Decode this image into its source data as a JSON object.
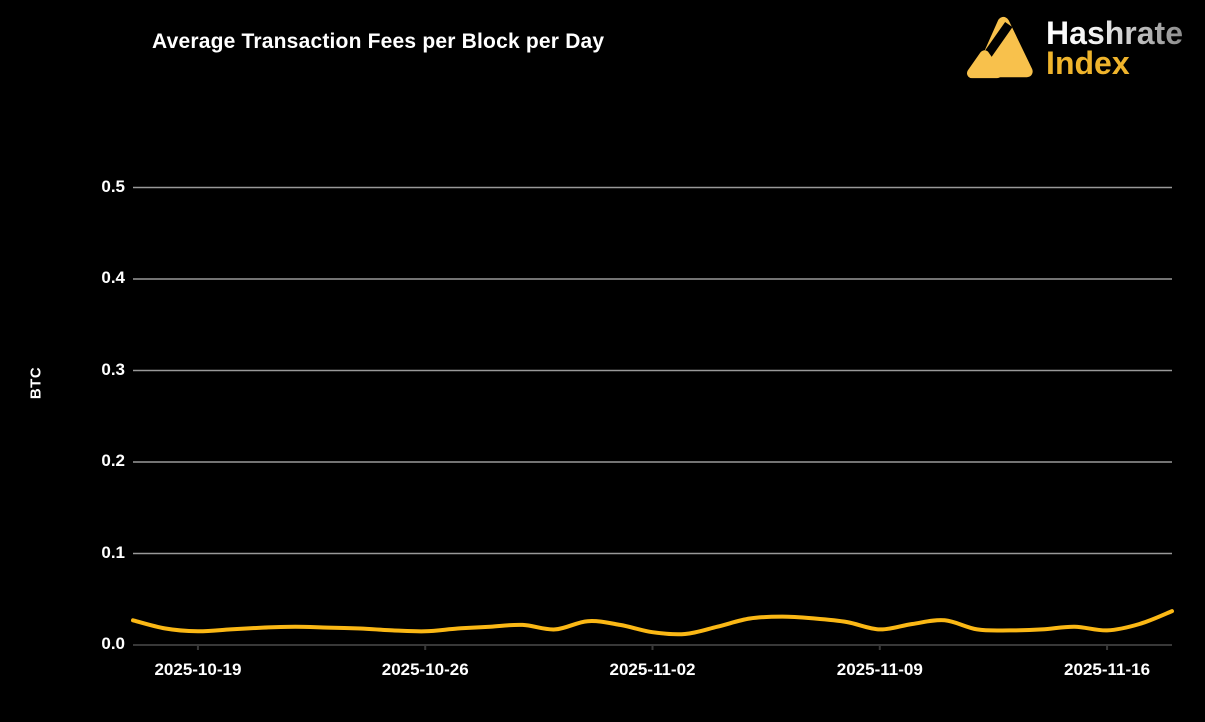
{
  "header": {
    "title": "Average Transaction Fees per Block per Day",
    "logo": {
      "brand_top": "Hashrate",
      "brand_bottom": "Index"
    }
  },
  "colors": {
    "background": "#000000",
    "title_text": "#FFFFFF",
    "axis_text": "#FFFFFF",
    "gridline": "#999999",
    "baseline": "#383838",
    "line": "#FBB815",
    "logo_mark": "#F8C14C",
    "logo_top_gradient_start": "#FFFFFF",
    "logo_top_gradient_end": "#8C8C8C",
    "logo_bottom_text": "#EFB42C"
  },
  "chart_data": {
    "type": "line",
    "title": "Average Transaction Fees per Block per Day",
    "xlabel": "",
    "ylabel": "BTC",
    "ylim": [
      0,
      0.5
    ],
    "y_ticks": [
      "0.0",
      "0.1",
      "0.2",
      "0.3",
      "0.4",
      "0.5"
    ],
    "x_tick_labels": [
      "2025-10-19",
      "2025-10-26",
      "2025-11-02",
      "2025-11-09",
      "2025-11-16"
    ],
    "grid": "horizontal-only",
    "legend_position": "none",
    "series": [
      {
        "name": "avg-transaction-fees-per-block",
        "color": "#FBB815",
        "x": [
          "2025-10-17",
          "2025-10-18",
          "2025-10-19",
          "2025-10-20",
          "2025-10-21",
          "2025-10-22",
          "2025-10-23",
          "2025-10-24",
          "2025-10-25",
          "2025-10-26",
          "2025-10-27",
          "2025-10-28",
          "2025-10-29",
          "2025-10-30",
          "2025-10-31",
          "2025-11-01",
          "2025-11-02",
          "2025-11-03",
          "2025-11-04",
          "2025-11-05",
          "2025-11-06",
          "2025-11-07",
          "2025-11-08",
          "2025-11-09",
          "2025-11-10",
          "2025-11-11",
          "2025-11-12",
          "2025-11-13",
          "2025-11-14",
          "2025-11-15",
          "2025-11-16",
          "2025-11-17",
          "2025-11-18"
        ],
        "values": [
          0.027,
          0.018,
          0.015,
          0.017,
          0.019,
          0.02,
          0.019,
          0.018,
          0.016,
          0.015,
          0.018,
          0.02,
          0.022,
          0.017,
          0.026,
          0.022,
          0.014,
          0.012,
          0.02,
          0.029,
          0.031,
          0.029,
          0.025,
          0.017,
          0.023,
          0.027,
          0.017,
          0.016,
          0.017,
          0.02,
          0.016,
          0.023,
          0.037
        ]
      }
    ]
  }
}
